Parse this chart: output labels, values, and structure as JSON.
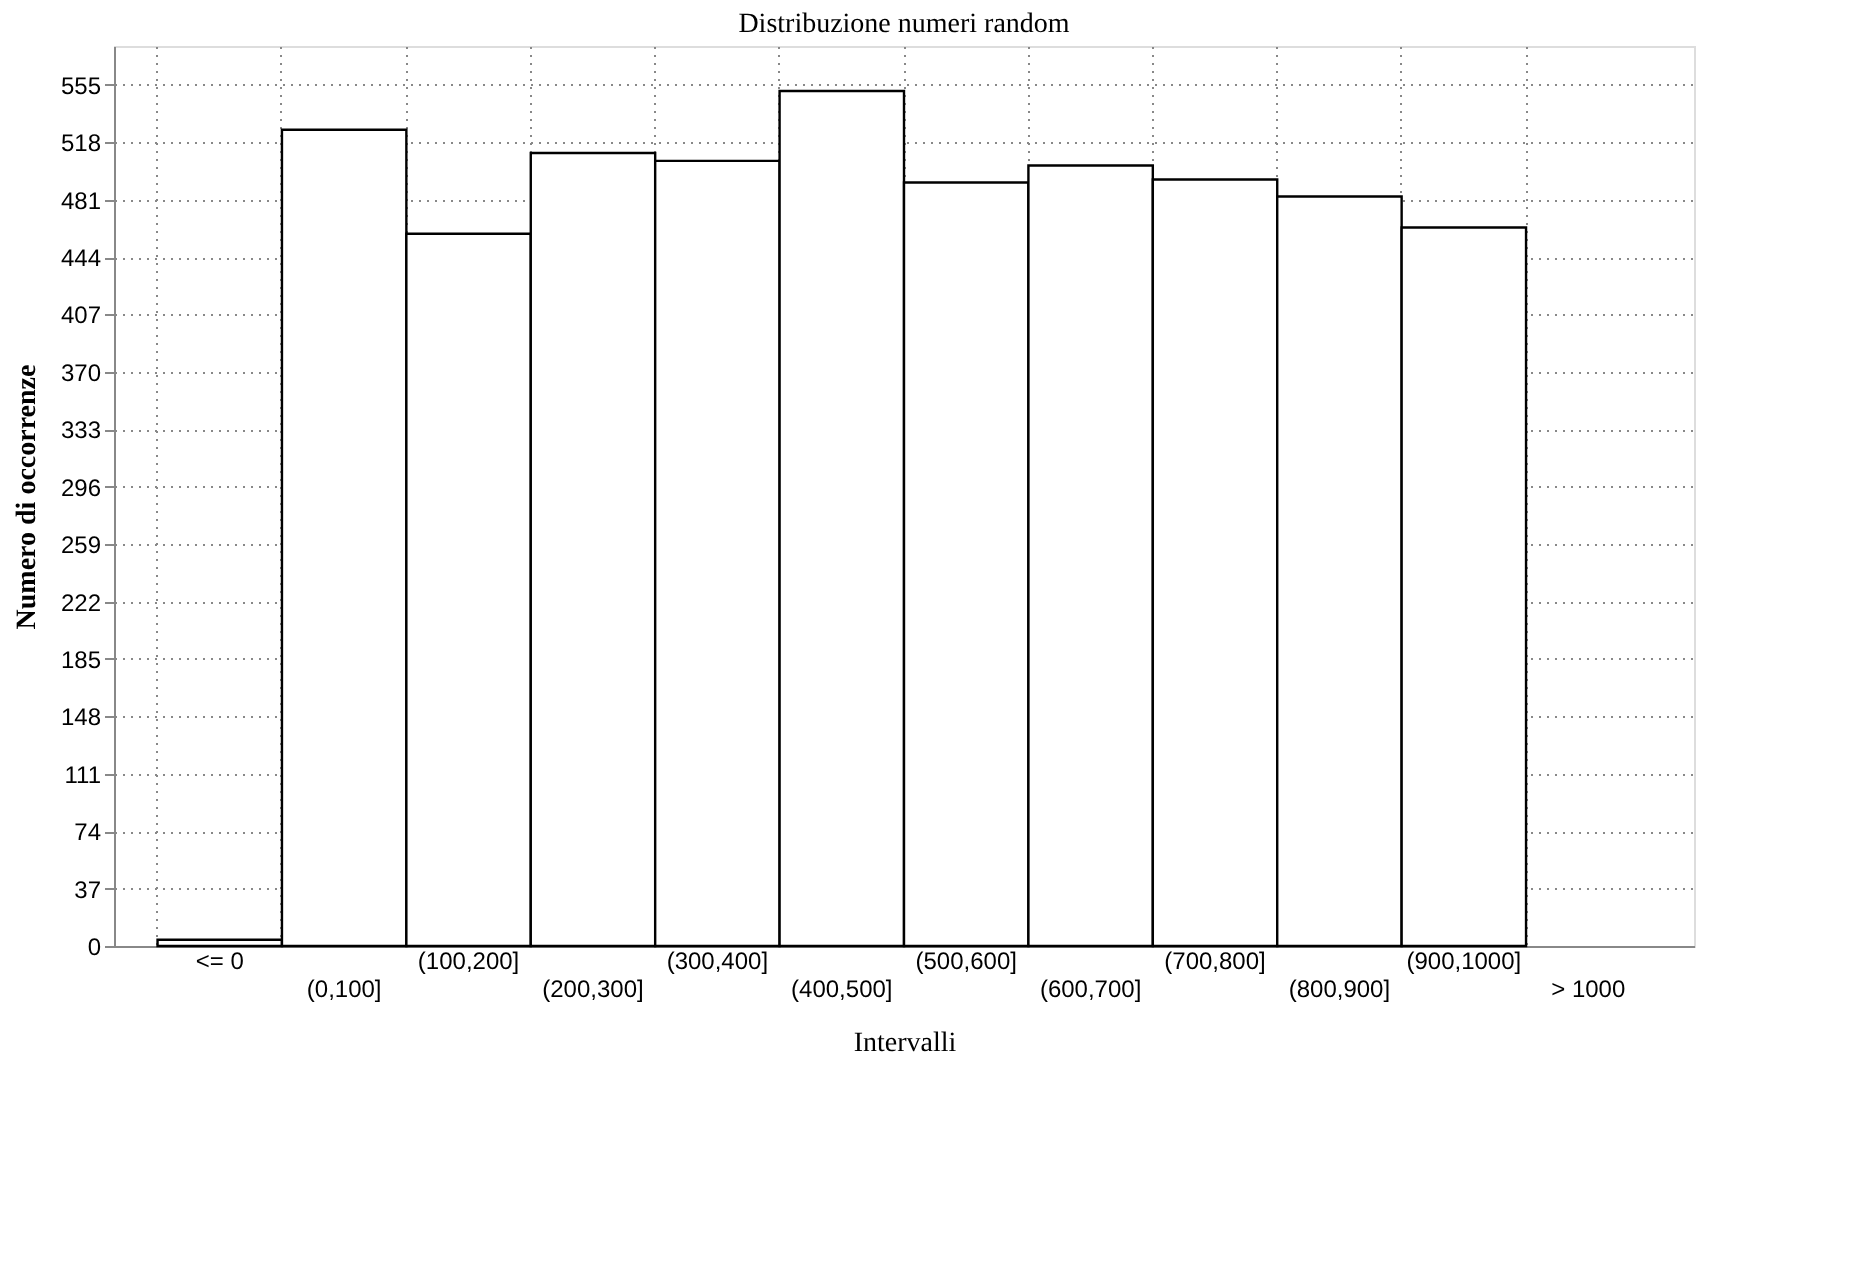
{
  "chart_data": {
    "type": "bar",
    "title": "Distribuzione numeri random",
    "xlabel": "Intervalli",
    "ylabel": "Numero di occorrenze",
    "categories": [
      "<= 0",
      "(0,100]",
      "(100,200]",
      "(200,300]",
      "(300,400]",
      "(400,500]",
      "(500,600]",
      "(600,700]",
      "(700,800]",
      "(800,900]",
      "(900,1000]",
      "> 1000"
    ],
    "values": [
      4,
      526,
      459,
      511,
      506,
      551,
      492,
      503,
      494,
      483,
      463,
      null
    ],
    "color": "#ffffff",
    "ylim": [
      0,
      580
    ],
    "yticks": [
      0,
      37,
      74,
      111,
      148,
      185,
      222,
      259,
      296,
      333,
      370,
      407,
      444,
      481,
      518,
      555
    ],
    "grid": true
  }
}
